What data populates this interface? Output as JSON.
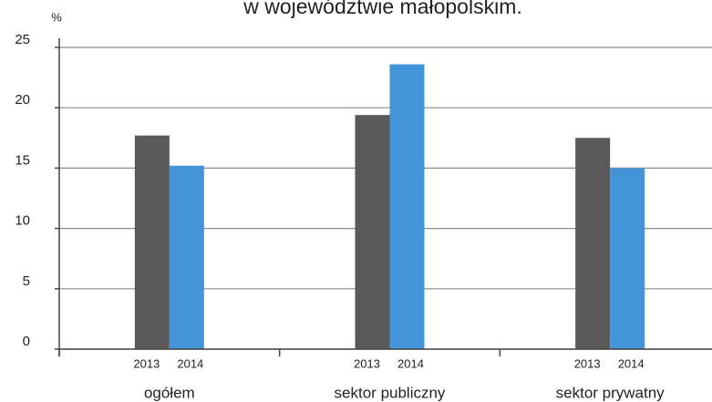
{
  "chart_data": {
    "type": "bar",
    "title": "w województwie małopolskim.",
    "y_label": "%",
    "categories": [
      "ogółem",
      "sektor publiczny",
      "sektor prywatny"
    ],
    "series": [
      {
        "name": "2013",
        "color": "#595959",
        "values": [
          17.7,
          19.4,
          17.5
        ]
      },
      {
        "name": "2014",
        "color": "#4394d8",
        "values": [
          15.2,
          23.6,
          15.0
        ]
      }
    ],
    "ylim": [
      0,
      25
    ],
    "yticks": [
      0,
      5,
      10,
      15,
      20,
      25
    ],
    "grid": true
  }
}
